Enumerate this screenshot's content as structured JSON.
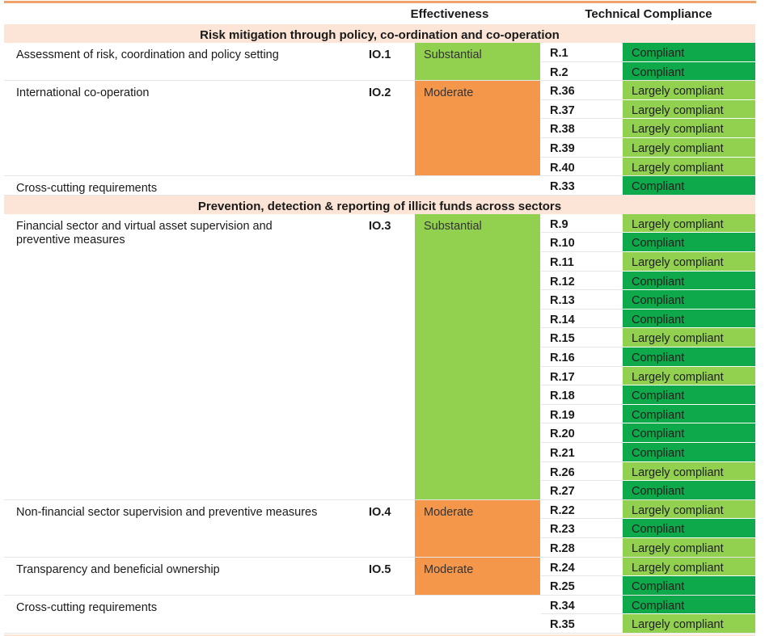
{
  "header": {
    "effectiveness": "Effectiveness",
    "technical_compliance": "Technical Compliance"
  },
  "colors": {
    "accent": "#f0a26a",
    "section_bg": "#fce5d6",
    "substantial": "#92d050",
    "moderate": "#f4974a",
    "compliant": "#0da94a",
    "largely_compliant": "#92d050"
  },
  "sections": [
    {
      "title": "Risk mitigation through policy, co-ordination and co-operation",
      "groups": [
        {
          "label": "Assessment of risk, coordination and policy setting",
          "io": "IO.1",
          "effectiveness": "Substantial",
          "recs": [
            {
              "r": "R.1",
              "rating": "Compliant"
            },
            {
              "r": "R.2",
              "rating": "Compliant"
            }
          ]
        },
        {
          "label": "International co-operation",
          "io": "IO.2",
          "effectiveness": "Moderate",
          "recs": [
            {
              "r": "R.36",
              "rating": "Largely compliant"
            },
            {
              "r": "R.37",
              "rating": "Largely compliant"
            },
            {
              "r": "R.38",
              "rating": "Largely compliant"
            },
            {
              "r": "R.39",
              "rating": "Largely compliant"
            },
            {
              "r": "R.40",
              "rating": "Largely compliant"
            }
          ]
        },
        {
          "label": "Cross-cutting requirements",
          "io": "",
          "effectiveness": "",
          "recs": [
            {
              "r": "R.33",
              "rating": "Compliant"
            }
          ]
        }
      ]
    },
    {
      "title": "Prevention, detection & reporting of illicit funds across sectors",
      "groups": [
        {
          "label": "Financial sector and virtual asset supervision and preventive measures",
          "io": "IO.3",
          "effectiveness": "Substantial",
          "recs": [
            {
              "r": "R.9",
              "rating": "Largely compliant"
            },
            {
              "r": "R.10",
              "rating": "Compliant"
            },
            {
              "r": "R.11",
              "rating": "Largely compliant"
            },
            {
              "r": "R.12",
              "rating": "Compliant"
            },
            {
              "r": "R.13",
              "rating": "Compliant"
            },
            {
              "r": "R.14",
              "rating": "Compliant"
            },
            {
              "r": "R.15",
              "rating": "Largely compliant"
            },
            {
              "r": "R.16",
              "rating": "Compliant"
            },
            {
              "r": "R.17",
              "rating": "Largely compliant"
            },
            {
              "r": "R.18",
              "rating": "Compliant"
            },
            {
              "r": "R.19",
              "rating": "Compliant"
            },
            {
              "r": "R.20",
              "rating": "Compliant"
            },
            {
              "r": "R.21",
              "rating": "Compliant"
            },
            {
              "r": "R.26",
              "rating": "Largely compliant"
            },
            {
              "r": "R.27",
              "rating": "Compliant"
            }
          ]
        },
        {
          "label": "Non-financial sector supervision and preventive measures",
          "io": "IO.4",
          "effectiveness": "Moderate",
          "recs": [
            {
              "r": "R.22",
              "rating": "Largely compliant"
            },
            {
              "r": "R.23",
              "rating": "Compliant"
            },
            {
              "r": "R.28",
              "rating": "Largely compliant"
            }
          ]
        },
        {
          "label": "Transparency and beneficial ownership",
          "io": "IO.5",
          "effectiveness": "Moderate",
          "recs": [
            {
              "r": "R.24",
              "rating": "Largely compliant"
            },
            {
              "r": "R.25",
              "rating": "Compliant"
            }
          ]
        },
        {
          "label": "Cross-cutting requirements",
          "io": "",
          "effectiveness": "",
          "recs": [
            {
              "r": "R.34",
              "rating": "Compliant"
            },
            {
              "r": "R.35",
              "rating": "Largely compliant"
            }
          ]
        }
      ]
    }
  ]
}
